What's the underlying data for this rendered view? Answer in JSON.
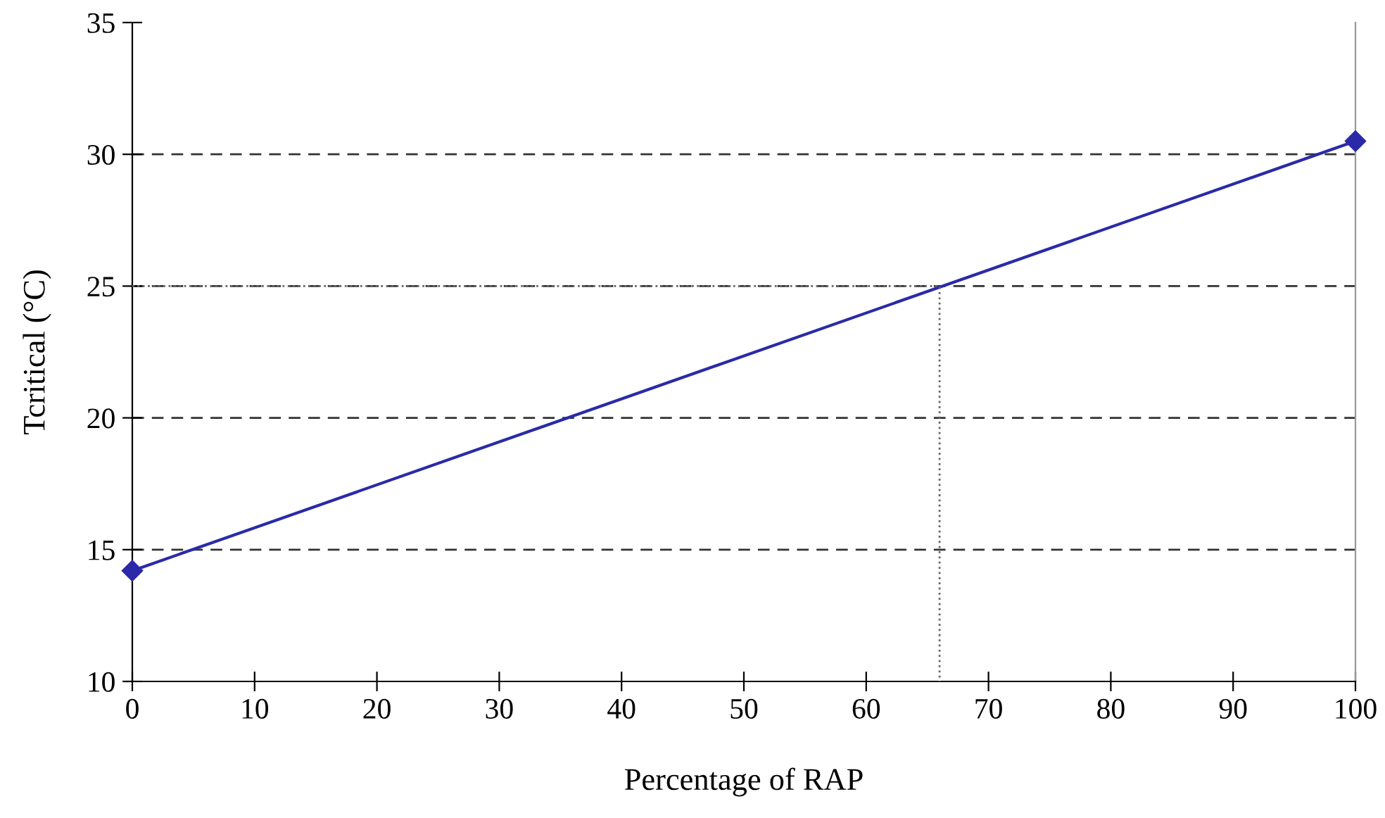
{
  "chart_data": {
    "type": "line",
    "xlabel": "Percentage of RAP",
    "ylabel": "Tcritical (°C)",
    "series": [
      {
        "x": [
          0,
          100
        ],
        "values": [
          14.2,
          30.5
        ],
        "color": "#2a2aa8",
        "marker": "diamond",
        "line_style": "solid"
      },
      {
        "x": [
          0,
          66,
          66
        ],
        "values": [
          25,
          25,
          10
        ],
        "color": "#666666",
        "marker": "none",
        "line_style": "dotted"
      }
    ],
    "xlim": [
      0,
      100
    ],
    "xticks": [
      0,
      10,
      20,
      30,
      40,
      50,
      60,
      70,
      80,
      90,
      100
    ],
    "ylim": [
      10,
      35
    ],
    "yticks": [
      10,
      15,
      20,
      25,
      30,
      35
    ],
    "grid": "y",
    "legend": false
  }
}
